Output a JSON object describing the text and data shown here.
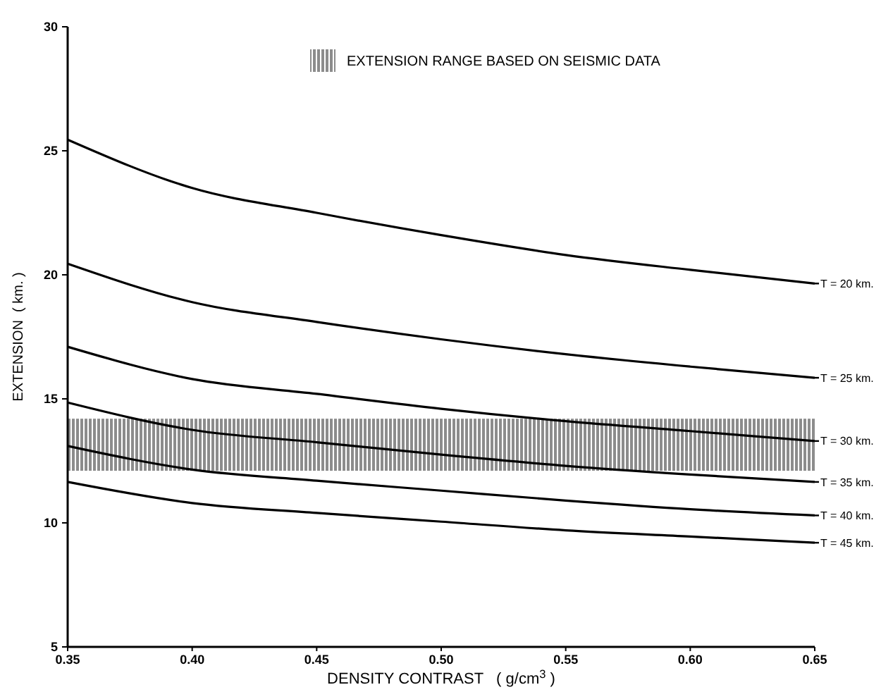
{
  "chart_data": {
    "type": "line",
    "xlabel": "DENSITY CONTRAST   ( g/cm$^{3}$ )",
    "ylabel": "EXTENSION  ( km. )",
    "x": [
      0.35,
      0.4,
      0.45,
      0.5,
      0.55,
      0.6,
      0.65
    ],
    "series": [
      {
        "name": "T = 20 km.",
        "color": "#000000",
        "values": [
          25.45,
          23.5,
          22.5,
          21.6,
          20.8,
          20.2,
          19.65
        ]
      },
      {
        "name": "T = 25 km.",
        "color": "#000000",
        "values": [
          20.45,
          18.9,
          18.1,
          17.4,
          16.8,
          16.3,
          15.85
        ]
      },
      {
        "name": "T = 30 km.",
        "color": "#000000",
        "values": [
          17.1,
          15.8,
          15.2,
          14.6,
          14.1,
          13.7,
          13.3
        ]
      },
      {
        "name": "T = 35 km.",
        "color": "#000000",
        "values": [
          14.85,
          13.75,
          13.25,
          12.75,
          12.3,
          11.95,
          11.65
        ]
      },
      {
        "name": "T = 40 km.",
        "color": "#000000",
        "values": [
          13.1,
          12.15,
          11.7,
          11.3,
          10.9,
          10.55,
          10.3
        ]
      },
      {
        "name": "T = 45 km.",
        "color": "#000000",
        "values": [
          11.65,
          10.8,
          10.4,
          10.05,
          9.7,
          9.45,
          9.2
        ]
      }
    ],
    "bands": [
      {
        "axis": "y",
        "from": 12.1,
        "to": 14.2,
        "label": "EXTENSION RANGE BASED ON SEISMIC DATA",
        "color": "#8c8c8c"
      }
    ],
    "xlim": [
      0.35,
      0.65
    ],
    "xticks": [
      {
        "value": 0.35,
        "label": "0.35"
      },
      {
        "value": 0.4,
        "label": "0.40"
      },
      {
        "value": 0.45,
        "label": "0.45"
      },
      {
        "value": 0.5,
        "label": "0.50"
      },
      {
        "value": 0.55,
        "label": "0.55"
      },
      {
        "value": 0.6,
        "label": "0.60"
      },
      {
        "value": 0.65,
        "label": "0.65"
      }
    ],
    "ylim": [
      5,
      30
    ],
    "yticks": [
      5,
      10,
      15,
      20,
      25,
      30
    ],
    "legend": "top",
    "marker": "none",
    "line_style": "solid",
    "grid": false
  }
}
